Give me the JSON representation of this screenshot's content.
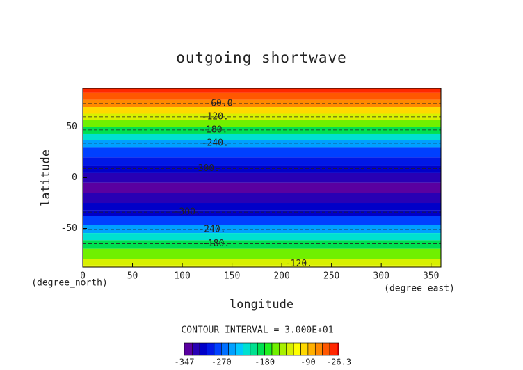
{
  "chart_data": {
    "type": "zonal-contour",
    "title": "outgoing shortwave",
    "xlabel": "longitude",
    "ylabel": "latitude",
    "xunit": "(degree_east)",
    "yunit": "(degree_north)",
    "xlim": [
      0,
      360
    ],
    "ylim": [
      -88,
      88
    ],
    "xticks": [
      0,
      50,
      100,
      150,
      200,
      250,
      300,
      350
    ],
    "yticks": [
      -50,
      0,
      50
    ],
    "lat": [
      88,
      80,
      73,
      66,
      60,
      53,
      47,
      40,
      34,
      25,
      15,
      9,
      0,
      -10,
      -20,
      -30,
      -34,
      -42,
      -51,
      -58,
      -65,
      -75,
      -85,
      -88
    ],
    "values": [
      -30,
      -45,
      -60,
      -90,
      -120,
      -150,
      -180,
      -210,
      -240,
      -270,
      -290,
      -300,
      -320,
      -330,
      -320,
      -305,
      -300,
      -270,
      -240,
      -210,
      -180,
      -150,
      -120,
      -110
    ],
    "contours": [
      {
        "label": "-60.0",
        "value": -60,
        "lat": 73,
        "lon": 137
      },
      {
        "label": "-120.",
        "value": -120,
        "lat": 60,
        "lon": 133
      },
      {
        "label": "-180.",
        "value": -180,
        "lat": 47,
        "lon": 132
      },
      {
        "label": "-240.",
        "value": -240,
        "lat": 34,
        "lon": 133
      },
      {
        "label": "-300.",
        "value": -300,
        "lat": 9,
        "lon": 124
      },
      {
        "label": "-300.",
        "value": -300,
        "lat": -34,
        "lon": 105
      },
      {
        "label": "-240.",
        "value": -240,
        "lat": -51,
        "lon": 130
      },
      {
        "label": "-180.",
        "value": -180,
        "lat": -65,
        "lon": 134
      },
      {
        "label": "-120.",
        "value": -120,
        "lat": -85,
        "lon": 217
      }
    ],
    "contour_interval_text": "CONTOUR INTERVAL = 3.000E+01",
    "colorbar": {
      "levels": [
        -347,
        -330,
        -315,
        -300,
        -285,
        -270,
        -255,
        -240,
        -225,
        -210,
        -195,
        -180,
        -165,
        -150,
        -135,
        -120,
        -105,
        -90,
        -75,
        -60,
        -45,
        -30,
        -26.3
      ],
      "colors": [
        "#5a00a0",
        "#2800b4",
        "#0000c8",
        "#0018e6",
        "#0040ff",
        "#0070ff",
        "#00a0ff",
        "#00c8ff",
        "#00e0d0",
        "#00e090",
        "#00e050",
        "#20f020",
        "#70f000",
        "#a8f000",
        "#d8f000",
        "#ffff00",
        "#ffd800",
        "#ffb000",
        "#ff8800",
        "#ff5800",
        "#ff2800",
        "#e80000"
      ],
      "ticks": [
        -347,
        -270,
        -180,
        -90,
        -26.3
      ]
    }
  }
}
